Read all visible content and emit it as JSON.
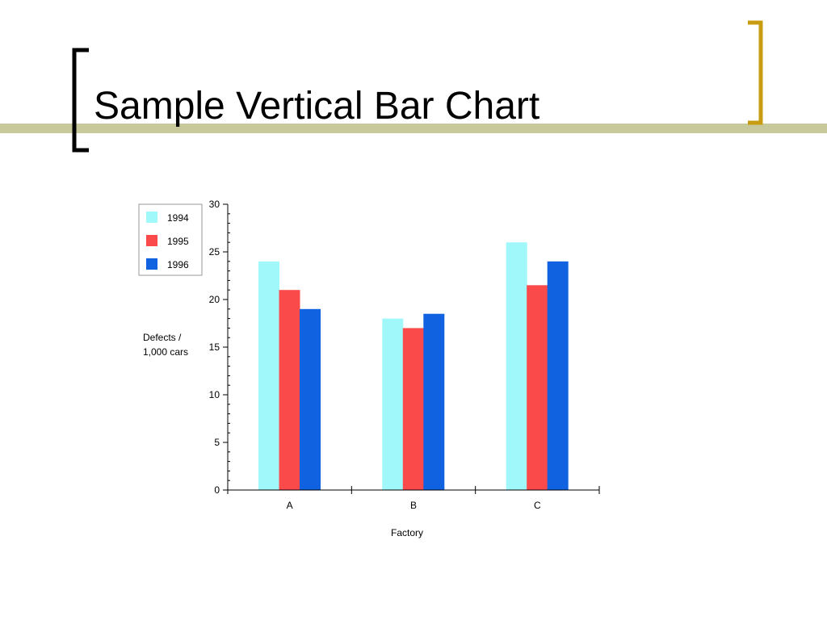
{
  "slide": {
    "title": "Sample Vertical Bar Chart"
  },
  "colors": {
    "title_rule": "#c8c99a",
    "left_bracket": "#000000",
    "right_bracket": "#c89c10",
    "axis": "#000000"
  },
  "chart_data": {
    "type": "bar",
    "title": "",
    "xlabel": "Factory",
    "ylabel": "Defects / 1,000 cars",
    "ylabel_lines": [
      "Defects /",
      "1,000 cars"
    ],
    "categories": [
      "A",
      "B",
      "C"
    ],
    "ylim": [
      0,
      30
    ],
    "yticks": [
      0,
      5,
      10,
      15,
      20,
      25,
      30
    ],
    "grid": false,
    "legend_position": "top-left",
    "series": [
      {
        "name": "1994",
        "color": "#a0f8fa",
        "values": [
          24,
          18,
          26
        ]
      },
      {
        "name": "1995",
        "color": "#fb4a4a",
        "values": [
          21,
          17,
          21.5
        ]
      },
      {
        "name": "1996",
        "color": "#1062e0",
        "values": [
          19,
          18.5,
          24
        ]
      }
    ]
  }
}
